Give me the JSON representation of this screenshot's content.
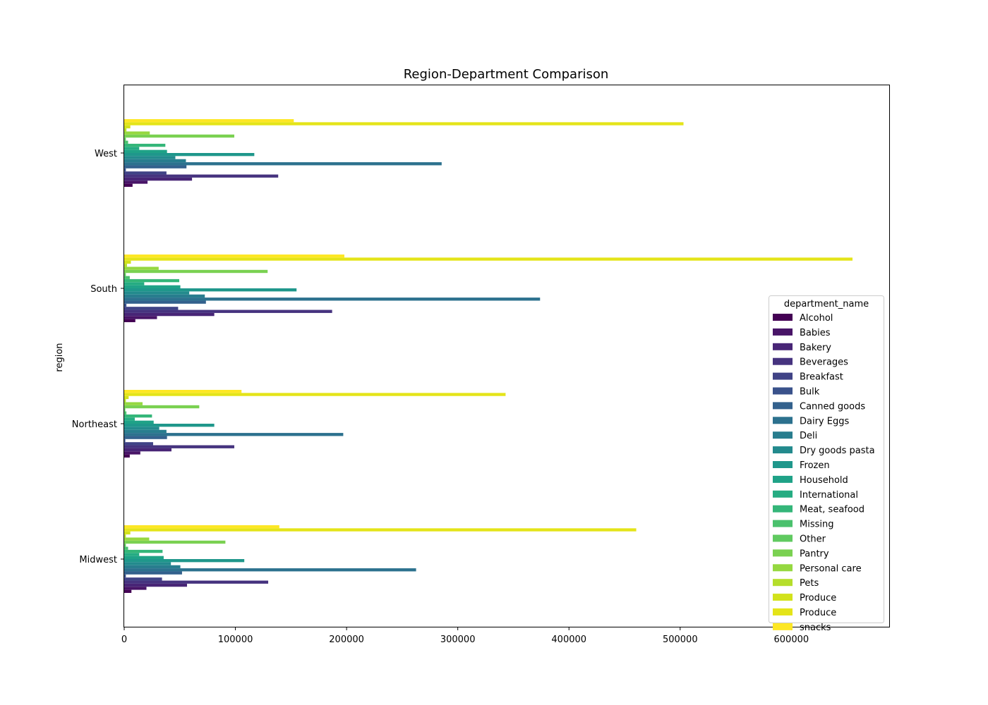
{
  "chart_data": {
    "type": "bar",
    "orientation": "horizontal",
    "title": "Region-Department Comparison",
    "xlabel": "",
    "ylabel": "region",
    "xlim": [
      0,
      688000
    ],
    "xticks": [
      0,
      100000,
      200000,
      300000,
      400000,
      500000,
      600000
    ],
    "categories": [
      "Midwest",
      "Northeast",
      "South",
      "West"
    ],
    "legend": {
      "title": "department_name",
      "placement": "center-right"
    },
    "grid": false,
    "series": [
      {
        "name": "Alcohol",
        "color": "#440154",
        "values": [
          6500,
          5000,
          10000,
          7500
        ]
      },
      {
        "name": "Babies",
        "color": "#481467",
        "values": [
          20000,
          14500,
          29500,
          21000
        ]
      },
      {
        "name": "Bakery",
        "color": "#482576",
        "values": [
          56500,
          42500,
          81000,
          61000
        ]
      },
      {
        "name": "Beverages",
        "color": "#46337f",
        "values": [
          129500,
          99000,
          187000,
          138500
        ]
      },
      {
        "name": "Breakfast",
        "color": "#404386",
        "values": [
          34000,
          26000,
          48500,
          38000
        ]
      },
      {
        "name": "Bulk",
        "color": "#3a528b",
        "values": [
          1500,
          1000,
          2000,
          1500
        ]
      },
      {
        "name": "Canned goods",
        "color": "#33618d",
        "values": [
          52000,
          38500,
          73500,
          56000
        ]
      },
      {
        "name": "Dairy Eggs",
        "color": "#2c718e",
        "values": [
          262500,
          197000,
          374000,
          285500
        ]
      },
      {
        "name": "Deli",
        "color": "#287d8e",
        "values": [
          50500,
          38000,
          72500,
          55500
        ]
      },
      {
        "name": "Dry goods pasta",
        "color": "#238a8d",
        "values": [
          42000,
          31500,
          58500,
          46000
        ]
      },
      {
        "name": "Frozen",
        "color": "#1f978b",
        "values": [
          108000,
          81000,
          155000,
          117000
        ]
      },
      {
        "name": "Household",
        "color": "#1fa287",
        "values": [
          35500,
          26500,
          50500,
          38500
        ]
      },
      {
        "name": "International",
        "color": "#25ac82",
        "values": [
          13500,
          9500,
          18000,
          13500
        ]
      },
      {
        "name": "Meat, seafood",
        "color": "#34b679",
        "values": [
          34500,
          25000,
          49500,
          37000
        ]
      },
      {
        "name": "Missing",
        "color": "#4ac16d",
        "values": [
          3500,
          2000,
          5000,
          3500
        ]
      },
      {
        "name": "Other",
        "color": "#60ca60",
        "values": [
          1500,
          1000,
          1500,
          1500
        ]
      },
      {
        "name": "Pantry",
        "color": "#7ad151",
        "values": [
          91000,
          67500,
          129000,
          99000
        ]
      },
      {
        "name": "Personal care",
        "color": "#95d840",
        "values": [
          22500,
          16500,
          31000,
          23000
        ]
      },
      {
        "name": "Pets",
        "color": "#b5de2b",
        "values": [
          1500,
          1500,
          2500,
          2000
        ]
      },
      {
        "name": "Produce",
        "color": "#d2e21b",
        "values": [
          5500,
          4000,
          6000,
          5500
        ]
      },
      {
        "name": "Produce",
        "color": "#e4e419",
        "values": [
          460500,
          343000,
          655000,
          503000
        ]
      },
      {
        "name": "snacks",
        "color": "#fde725",
        "values": [
          139500,
          105500,
          198000,
          152500
        ]
      }
    ]
  }
}
